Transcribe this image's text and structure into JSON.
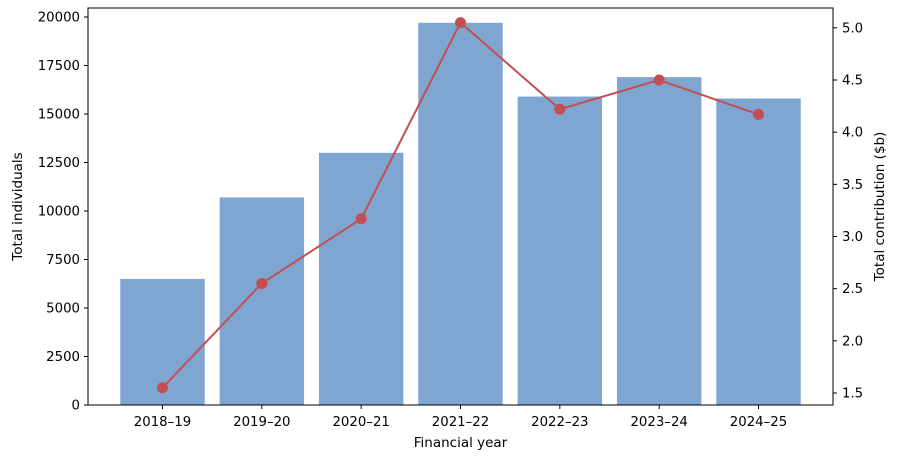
{
  "chart_data": {
    "type": "bar",
    "subtype": "bar+line-dual-axis",
    "title": "",
    "xlabel": "Financial year",
    "ylabel_left": "Total individuals",
    "ylabel_right": "Total contribution ($b)",
    "categories": [
      "2018–19",
      "2019–20",
      "2020–21",
      "2021–22",
      "2022–23",
      "2023–24",
      "2024–25"
    ],
    "series": [
      {
        "name": "Total individuals",
        "type": "bar",
        "axis": "left",
        "color": "#7fa5d1",
        "values": [
          6500,
          10700,
          13000,
          19700,
          15900,
          16900,
          15800
        ]
      },
      {
        "name": "Total contribution ($b)",
        "type": "line",
        "axis": "right",
        "color": "#c44e52",
        "marker": "circle",
        "values": [
          1.55,
          2.55,
          3.17,
          5.05,
          4.22,
          4.5,
          4.17
        ]
      }
    ],
    "left_axis": {
      "min": 0,
      "max": 20464,
      "ticks": [
        0,
        2500,
        5000,
        7500,
        10000,
        12500,
        15000,
        17500,
        20000
      ]
    },
    "right_axis": {
      "min": 1.385,
      "max": 5.19,
      "ticks": [
        1.5,
        2.0,
        2.5,
        3.0,
        3.5,
        4.0,
        4.5,
        5.0
      ]
    },
    "grid": false,
    "legend": "none",
    "spine_color": "#000000",
    "text_color": "#000000"
  }
}
